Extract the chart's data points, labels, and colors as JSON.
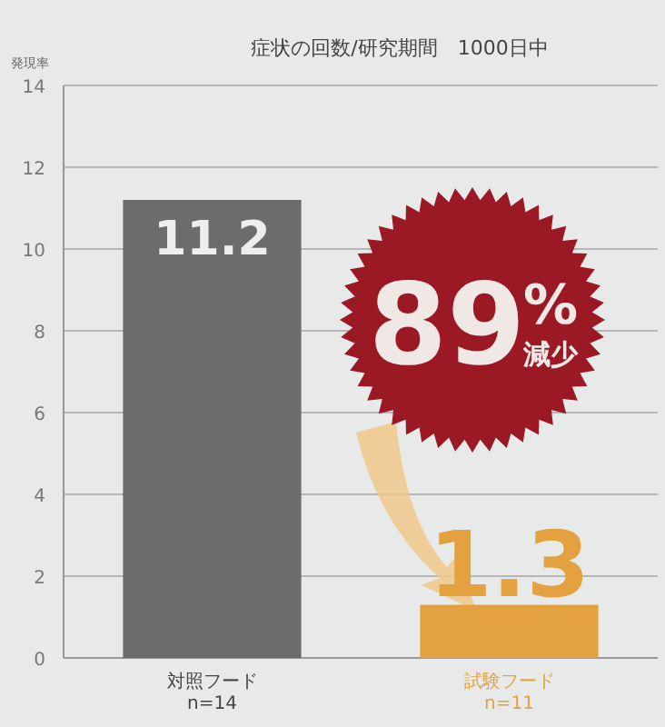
{
  "chart_data": {
    "type": "bar",
    "title": "症状の回数/研究期間　1000日中",
    "ylabel": "発現率",
    "categories": [
      "対照フード\nn=14",
      "試験フード\nn=11"
    ],
    "values": [
      11.2,
      1.3
    ],
    "colors": [
      "#6a6d6b",
      "#e3a13f"
    ],
    "ylim": [
      0,
      14
    ],
    "yticks": [
      0,
      2,
      4,
      6,
      8,
      10,
      12,
      14
    ],
    "grid": "y",
    "data_labels": true,
    "annotations": [
      "89%減少"
    ]
  }
}
